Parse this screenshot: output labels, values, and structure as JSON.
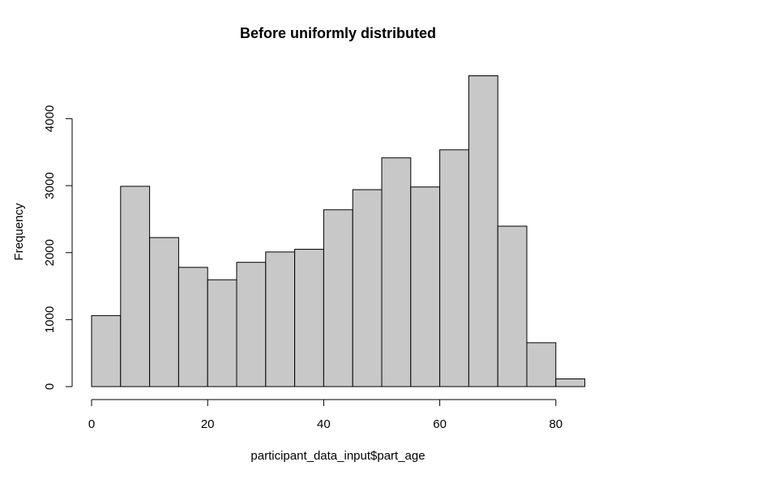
{
  "chart_data": {
    "type": "bar",
    "title": "Before uniformly distributed",
    "xlabel": "participant_data_input$part_age",
    "ylabel": "Frequency",
    "bin_edges": [
      0,
      5,
      10,
      15,
      20,
      25,
      30,
      35,
      40,
      45,
      50,
      55,
      60,
      65,
      70,
      75,
      80,
      85
    ],
    "values": [
      1060,
      2990,
      2225,
      1780,
      1595,
      1855,
      2010,
      2050,
      2640,
      2940,
      3415,
      2980,
      3535,
      4640,
      2395,
      655,
      115
    ],
    "xlim": [
      0,
      85
    ],
    "ylim": [
      0,
      4640
    ],
    "x_ticks": [
      0,
      20,
      40,
      60,
      80
    ],
    "y_ticks": [
      0,
      1000,
      2000,
      3000,
      4000
    ],
    "x_tick_labels": [
      "0",
      "20",
      "40",
      "60",
      "80"
    ],
    "y_tick_labels": [
      "0",
      "1000",
      "2000",
      "3000",
      "4000"
    ],
    "bar_fill": "#c8c8c8",
    "bar_stroke": "#000000",
    "grid": false,
    "legend": "none"
  }
}
